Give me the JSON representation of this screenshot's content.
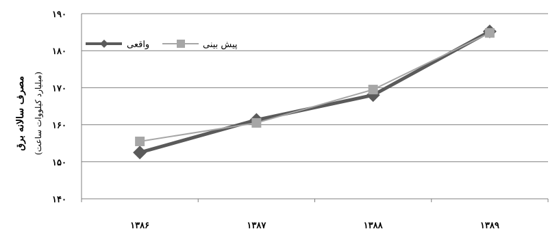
{
  "chart_data": {
    "type": "line",
    "categories": [
      "۱۳۸۶",
      "۱۳۸۷",
      "۱۳۸۸",
      "۱۳۸۹"
    ],
    "y_ticks": [
      {
        "value": 140,
        "label": "۱۴۰"
      },
      {
        "value": 150,
        "label": "۱۵۰"
      },
      {
        "value": 160,
        "label": "۱۶۰"
      },
      {
        "value": 170,
        "label": "۱۷۰"
      },
      {
        "value": 180,
        "label": "۱۸۰"
      },
      {
        "value": 190,
        "label": "۱۹۰"
      }
    ],
    "ylim": [
      140,
      190
    ],
    "grid": true,
    "ylabel": "مصرف سالانه برق",
    "ylabel_unit": "(میلیارد کیلووات ساعت)",
    "xlabel": "",
    "legend_position": "top-left",
    "series": [
      {
        "name": "واقعی",
        "values": [
          152.5,
          161.3,
          168.0,
          185.2
        ],
        "color": "#5a5a5a",
        "marker": "diamond"
      },
      {
        "name": "پیش بینی",
        "values": [
          155.5,
          160.5,
          169.5,
          184.8
        ],
        "color": "#a6a6a6",
        "marker": "square"
      }
    ]
  }
}
